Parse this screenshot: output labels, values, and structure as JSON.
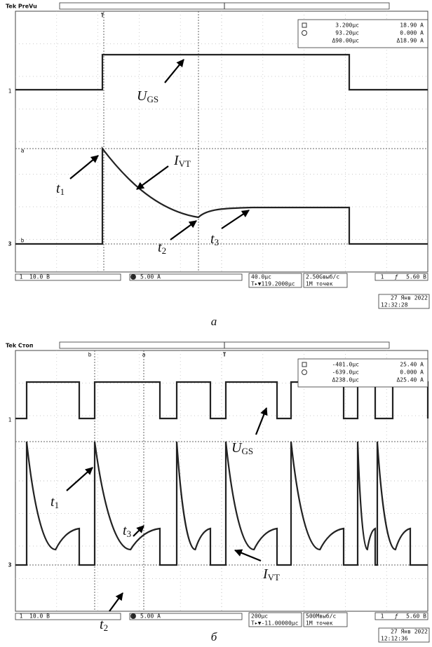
{
  "panel_a": {
    "status": "Tek PreVu",
    "markers": {
      "trigger": "T",
      "ch1": "1",
      "ch3": "3",
      "cursor_a": "a",
      "cursor_b": "b"
    },
    "readout": {
      "c1_time": "3.200µc",
      "c1_value": "18.90 A",
      "c2_time": "93.20µc",
      "c2_value": "0.000 A",
      "delta_time": "Δ90.00µc",
      "delta_value": "Δ18.90 A"
    },
    "labels": {
      "ugs": {
        "main": "U",
        "sub": "GS"
      },
      "ivt": {
        "main": "I",
        "sub": "VT"
      },
      "t1": {
        "main": "t",
        "sub": "1"
      },
      "t2": {
        "main": "t",
        "sub": "2"
      },
      "t3": {
        "main": "t",
        "sub": "3"
      }
    },
    "footer": {
      "ch1": "1",
      "ch1_scale": "10.0 B",
      "ch3": "3",
      "ch3_scale": "5.00 A",
      "timebase": "40.0µc",
      "trigger_pos": "T▸▼119.2000µc",
      "sample_rate": "2.50Gвыб/с",
      "record": "1M точек",
      "trig_ch": "1",
      "trig_slope": "ƒ",
      "trig_level": "5.60 B",
      "date": "27 Янв 2022",
      "time": "12:32:28"
    },
    "caption": "а"
  },
  "panel_b": {
    "status": "Tek Стоп",
    "markers": {
      "trigger": "T",
      "ch1": "1",
      "ch3": "3",
      "cursor_a": "a",
      "cursor_b": "b"
    },
    "readout": {
      "c1_time": "-401.0µc",
      "c1_value": "25.40 A",
      "c2_time": "-639.0µc",
      "c2_value": "0.000 A",
      "delta_time": "Δ238.0µc",
      "delta_value": "Δ25.40 A"
    },
    "labels": {
      "ugs": {
        "main": "U",
        "sub": "GS"
      },
      "ivt": {
        "main": "I",
        "sub": "VT"
      },
      "t1": {
        "main": "t",
        "sub": "1"
      },
      "t2": {
        "main": "t",
        "sub": "2"
      },
      "t3": {
        "main": "t",
        "sub": "3"
      }
    },
    "footer": {
      "ch1": "1",
      "ch1_scale": "10.0 B",
      "ch3": "3",
      "ch3_scale": "5.00 A",
      "timebase": "200µc",
      "trigger_pos": "T▸▼-11.00000µc",
      "sample_rate": "500Mвыб/с",
      "record": "1M точек",
      "trig_ch": "1",
      "trig_slope": "ƒ",
      "trig_level": "5.60 B",
      "date": "27 Янв 2022",
      "time": "12:12:36"
    },
    "caption": "б"
  }
}
